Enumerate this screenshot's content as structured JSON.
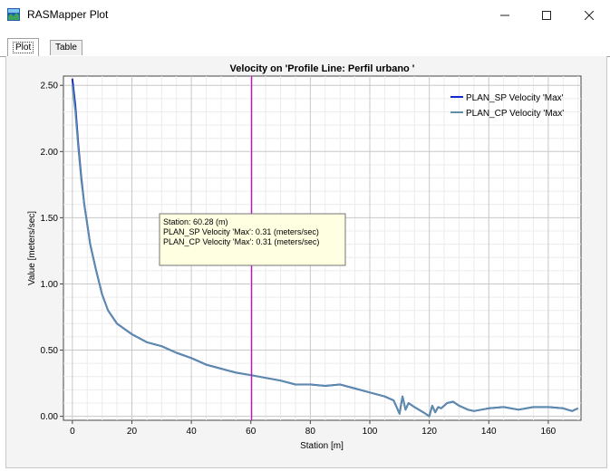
{
  "window": {
    "title": "RASMapper Plot",
    "icons": {
      "app": "rasmapper-app-icon",
      "minimize": "minimize-icon",
      "maximize": "maximize-icon",
      "close": "close-icon"
    }
  },
  "tabs": [
    {
      "label": "Plot",
      "active": true
    },
    {
      "label": "Table",
      "active": false
    }
  ],
  "chart_data": {
    "type": "line",
    "title": "Velocity on 'Profile Line: Perfil urbano '",
    "xlabel": "Station [m]",
    "ylabel": "Value [meters/sec]",
    "xlim": [
      -3,
      171
    ],
    "ylim": [
      -0.03,
      2.57
    ],
    "x_ticks": [
      0,
      20,
      40,
      60,
      80,
      100,
      120,
      140,
      160
    ],
    "y_ticks": [
      0.0,
      0.5,
      1.0,
      1.5,
      2.0,
      2.5
    ],
    "y_tick_labels": [
      "0.00",
      "0.50",
      "1.00",
      "1.50",
      "2.00",
      "2.50"
    ],
    "grid": true,
    "legend_position": "top-right",
    "series": [
      {
        "name": "PLAN_SP Velocity 'Max'",
        "color": "#1428d2",
        "x": [
          0,
          1,
          2,
          3,
          4,
          5,
          6,
          8,
          10,
          12,
          15,
          20,
          25,
          30,
          35,
          40,
          45,
          50,
          55,
          60.28,
          65,
          70,
          75,
          80,
          85,
          90,
          95,
          100,
          105,
          108,
          110,
          111,
          112,
          113,
          115,
          118,
          120,
          121,
          122,
          123,
          124,
          126,
          128,
          130,
          133,
          135,
          140,
          145,
          150,
          155,
          160,
          165,
          168,
          170
        ],
        "values": [
          2.55,
          2.35,
          2.05,
          1.8,
          1.6,
          1.45,
          1.3,
          1.1,
          0.92,
          0.8,
          0.7,
          0.62,
          0.56,
          0.53,
          0.48,
          0.44,
          0.39,
          0.36,
          0.33,
          0.31,
          0.29,
          0.27,
          0.24,
          0.24,
          0.23,
          0.24,
          0.21,
          0.18,
          0.15,
          0.12,
          0.02,
          0.15,
          0.05,
          0.1,
          0.07,
          0.03,
          0.0,
          0.08,
          0.03,
          0.07,
          0.06,
          0.1,
          0.11,
          0.08,
          0.05,
          0.04,
          0.06,
          0.07,
          0.05,
          0.07,
          0.07,
          0.06,
          0.04,
          0.06
        ]
      },
      {
        "name": "PLAN_CP Velocity 'Max'",
        "color": "#5f8ea8",
        "x": [
          0,
          1,
          2,
          3,
          4,
          5,
          6,
          8,
          10,
          12,
          15,
          20,
          25,
          30,
          35,
          40,
          45,
          50,
          55,
          60.28,
          65,
          70,
          75,
          80,
          85,
          90,
          95,
          100,
          105,
          108,
          110,
          111,
          112,
          113,
          115,
          118,
          120,
          121,
          122,
          123,
          124,
          126,
          128,
          130,
          133,
          135,
          140,
          145,
          150,
          155,
          160,
          165,
          168,
          170
        ],
        "values": [
          2.5,
          2.3,
          2.02,
          1.78,
          1.6,
          1.45,
          1.3,
          1.1,
          0.92,
          0.8,
          0.7,
          0.62,
          0.56,
          0.53,
          0.48,
          0.44,
          0.39,
          0.36,
          0.33,
          0.31,
          0.29,
          0.27,
          0.24,
          0.24,
          0.23,
          0.24,
          0.21,
          0.18,
          0.15,
          0.12,
          0.02,
          0.15,
          0.05,
          0.1,
          0.07,
          0.03,
          0.0,
          0.08,
          0.03,
          0.07,
          0.06,
          0.1,
          0.11,
          0.08,
          0.05,
          0.04,
          0.06,
          0.07,
          0.05,
          0.07,
          0.07,
          0.06,
          0.04,
          0.06
        ]
      }
    ],
    "cursor": {
      "x": 60.28,
      "color": "#cc00cc"
    },
    "tooltip": {
      "lines": [
        "Station: 60.28 (m)",
        "PLAN_SP Velocity 'Max': 0.31 (meters/sec)",
        "PLAN_CP Velocity 'Max': 0.31 (meters/sec)"
      ]
    }
  }
}
